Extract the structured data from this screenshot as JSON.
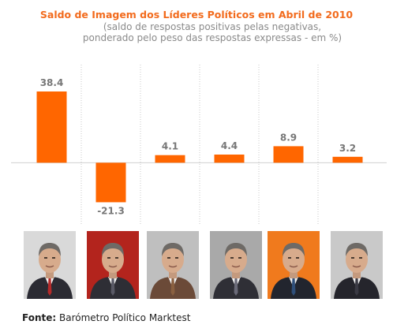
{
  "chart_data": {
    "type": "bar",
    "title": "Saldo de Imagem dos Líderes Políticos em Abril de 2010",
    "subtitle_lines": [
      "(saldo de respostas positivas pelas negativas,",
      "ponderado pelo peso das respostas expressas - em %)"
    ],
    "categories": [
      "",
      "",
      "",
      "",
      "",
      ""
    ],
    "values": [
      38.4,
      -21.3,
      4.1,
      4.4,
      8.9,
      3.2
    ],
    "value_labels": [
      "38.4",
      "-21.3",
      "4.1",
      "4.4",
      "8.9",
      "3.2"
    ],
    "xlabel": "",
    "ylabel": "",
    "ylim": [
      -33,
      52
    ],
    "bar_color": "#ff6600",
    "grid": "vertical-dotted-separators"
  },
  "photos": [
    {
      "icon": "portrait-1-icon",
      "bg": "#d9d9d9",
      "suit": "#2b2b33",
      "tie": "#b52a2a"
    },
    {
      "icon": "portrait-2-icon",
      "bg": "#b3241d",
      "suit": "#2e2e35",
      "tie": "#5a5a66"
    },
    {
      "icon": "portrait-3-icon",
      "bg": "#bfbfbf",
      "suit": "#6b4a38",
      "tie": "#8a6040"
    },
    {
      "icon": "portrait-4-icon",
      "bg": "#a9a9a9",
      "suit": "#2f2f36",
      "tie": "#6a6a78"
    },
    {
      "icon": "portrait-5-icon",
      "bg": "#f07a1d",
      "suit": "#22252e",
      "tie": "#2f4f7a"
    },
    {
      "icon": "portrait-6-icon",
      "bg": "#c9c9c9",
      "suit": "#25252c",
      "tie": "#3a3a44"
    }
  ],
  "source": {
    "label": "Fonte:",
    "text": "Barómetro Político Marktest"
  }
}
